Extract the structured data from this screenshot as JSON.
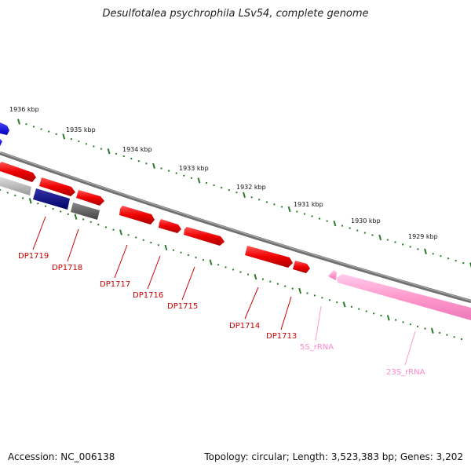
{
  "title": "Desulfotalea psychrophila LSv54, complete genome",
  "accession": "Accession: NC_006138",
  "summary": "Topology: circular; Length: 3,523,383 bp; Genes: 3,202",
  "kbp_labels": [
    "1936 kbp",
    "1935 kbp",
    "1934 kbp",
    "1933 kbp",
    "1932 kbp",
    "1931 kbp",
    "1930 kbp",
    "1929 kbp"
  ],
  "genes": [
    {
      "label": "DP1719",
      "color": "#cc0000"
    },
    {
      "label": "DP1718",
      "color": "#cc0000"
    },
    {
      "label": "DP1717",
      "color": "#cc0000"
    },
    {
      "label": "DP1716",
      "color": "#cc0000"
    },
    {
      "label": "DP1715",
      "color": "#cc0000"
    },
    {
      "label": "DP1714",
      "color": "#cc0000"
    },
    {
      "label": "DP1713",
      "color": "#cc0000"
    },
    {
      "label": "5S_rRNA",
      "color": "#ff88cc"
    },
    {
      "label": "23S_rRNA",
      "color": "#ff88cc"
    }
  ],
  "colors": {
    "cds": "#ff0000",
    "rrna": "#ff99cc",
    "blue": "#0000ee",
    "navy": "#000088",
    "gray": "#555555",
    "lightgray": "#bbbbbb",
    "backbone": "#888888",
    "ticks": "#2a7a2a"
  }
}
